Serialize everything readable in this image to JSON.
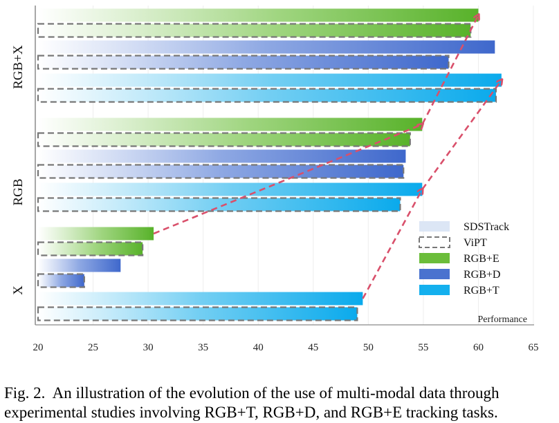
{
  "chart_data": {
    "type": "bar",
    "orientation": "horizontal",
    "xlabel": "Performance",
    "xlim": [
      20,
      65
    ],
    "xticks": [
      20,
      25,
      30,
      35,
      40,
      45,
      50,
      55,
      60,
      65
    ],
    "groups": [
      "RGB+X",
      "RGB",
      "X"
    ],
    "colors": {
      "RGB+E": "#6bbd3a",
      "RGB+D": "#4a72cf",
      "RGB+T": "#14b0ee",
      "SDSTrack": "#dce6f5",
      "ViPT": "#777777",
      "arrow": "#d9506b"
    },
    "series": [
      {
        "name": "SDSTrack",
        "style": "light-fill"
      },
      {
        "name": "ViPT",
        "style": "dashed-outline"
      },
      {
        "name": "RGB+E",
        "style": "green"
      },
      {
        "name": "RGB+D",
        "style": "blue"
      },
      {
        "name": "RGB+T",
        "style": "cyan"
      }
    ],
    "bars": [
      {
        "group": "RGB+X",
        "modality": "RGB+E",
        "method": "SDSTrack",
        "value": 60.0
      },
      {
        "group": "RGB+X",
        "modality": "RGB+E",
        "method": "ViPT",
        "value": 59.3
      },
      {
        "group": "RGB+X",
        "modality": "RGB+D",
        "method": "SDSTrack",
        "value": 61.5
      },
      {
        "group": "RGB+X",
        "modality": "RGB+D",
        "method": "ViPT",
        "value": 57.3
      },
      {
        "group": "RGB+X",
        "modality": "RGB+T",
        "method": "SDSTrack",
        "value": 62.1
      },
      {
        "group": "RGB+X",
        "modality": "RGB+T",
        "method": "ViPT",
        "value": 61.6
      },
      {
        "group": "RGB",
        "modality": "RGB+E",
        "method": "SDSTrack",
        "value": 54.9
      },
      {
        "group": "RGB",
        "modality": "RGB+E",
        "method": "ViPT",
        "value": 53.8
      },
      {
        "group": "RGB",
        "modality": "RGB+D",
        "method": "SDSTrack",
        "value": 53.4
      },
      {
        "group": "RGB",
        "modality": "RGB+D",
        "method": "ViPT",
        "value": 53.2
      },
      {
        "group": "RGB",
        "modality": "RGB+T",
        "method": "SDSTrack",
        "value": 54.9
      },
      {
        "group": "RGB",
        "modality": "RGB+T",
        "method": "ViPT",
        "value": 52.9
      },
      {
        "group": "X",
        "modality": "RGB+E",
        "method": "SDSTrack",
        "value": 30.5
      },
      {
        "group": "X",
        "modality": "RGB+E",
        "method": "ViPT",
        "value": 29.5
      },
      {
        "group": "X",
        "modality": "RGB+D",
        "method": "SDSTrack",
        "value": 27.5
      },
      {
        "group": "X",
        "modality": "RGB+D",
        "method": "ViPT",
        "value": 24.2
      },
      {
        "group": "X",
        "modality": "RGB+T",
        "method": "SDSTrack",
        "value": 49.5
      },
      {
        "group": "X",
        "modality": "RGB+T",
        "method": "ViPT",
        "value": 49.0
      }
    ],
    "arrows": [
      {
        "modality": "RGB+E",
        "from": "X",
        "to": "RGB+X"
      },
      {
        "modality": "RGB+T",
        "from": "X",
        "to": "RGB+X"
      }
    ]
  },
  "caption": {
    "label": "Fig. 2.",
    "text": "An illustration of the evolution of the use of multi-modal data through experimental studies involving RGB+T, RGB+D, and RGB+E tracking tasks."
  }
}
